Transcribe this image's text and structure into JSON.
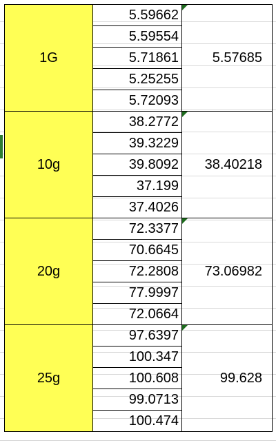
{
  "groups": [
    {
      "label": "1G",
      "readings": [
        "5.59662",
        "5.59554",
        "5.71861",
        "5.25255",
        "5.72093"
      ],
      "mean": "5.57685"
    },
    {
      "label": "10g",
      "readings": [
        "38.2772",
        "39.3229",
        "39.8092",
        "37.199",
        "37.4026"
      ],
      "mean": "38.40218"
    },
    {
      "label": "20g",
      "readings": [
        "72.3377",
        "70.6645",
        "72.2808",
        "77.9997",
        "72.0664"
      ],
      "mean": "73.06982"
    },
    {
      "label": "25g",
      "readings": [
        "97.6397",
        "100.347",
        "100.608",
        "99.0713",
        "100.474"
      ],
      "mean": "99.628"
    }
  ],
  "colors": {
    "label_fill": "#ffff55",
    "grid_border": "#000000",
    "error_indicator": "#1e6b1e"
  }
}
